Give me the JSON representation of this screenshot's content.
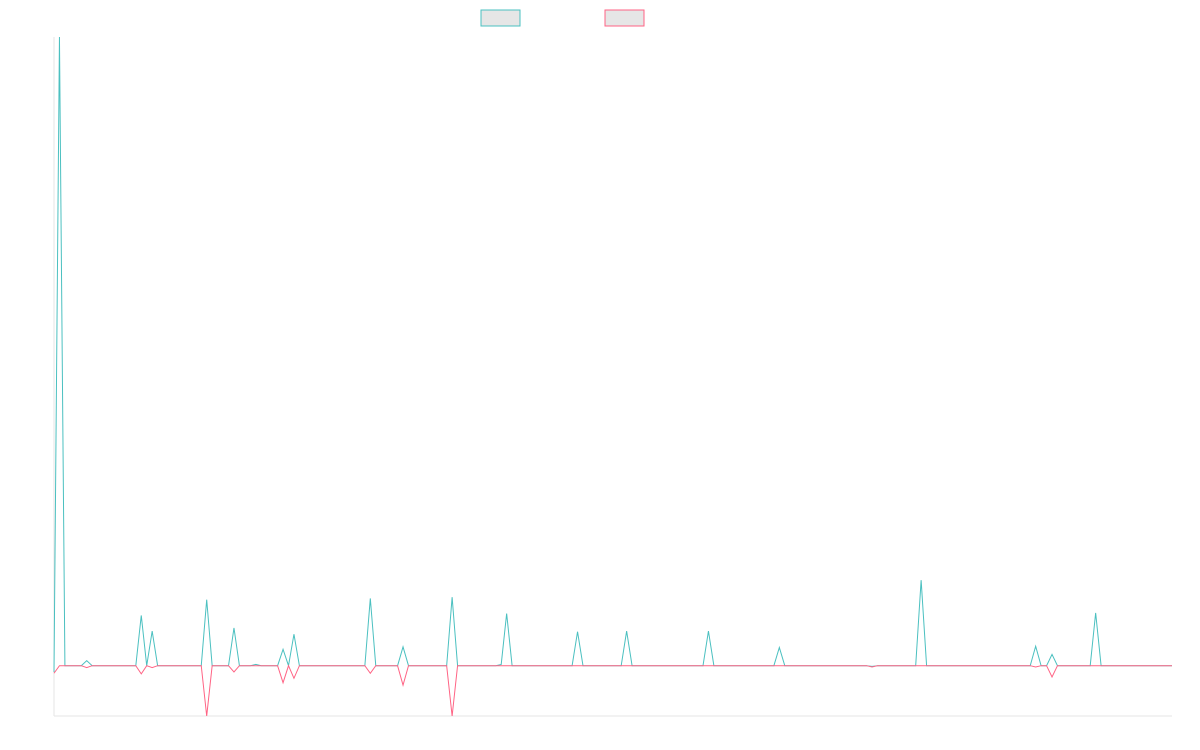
{
  "chart_data": {
    "type": "line",
    "title": "",
    "xlabel": "",
    "ylabel": "",
    "grid": false,
    "legend_placement": "top-center",
    "colors": {
      "legend_fill": "#e6e6e6",
      "axis": "#e6e6e6"
    },
    "x_count": 206,
    "ylim": [
      -8,
      100
    ],
    "series": [
      {
        "color": "#4bc0c0",
        "points": [
          [
            0,
            -1
          ],
          [
            1,
            100
          ],
          [
            2,
            0
          ],
          [
            5,
            0
          ],
          [
            6,
            0.8
          ],
          [
            7,
            0
          ],
          [
            15,
            0
          ],
          [
            16,
            8
          ],
          [
            17,
            0
          ],
          [
            18,
            5.5
          ],
          [
            19,
            0
          ],
          [
            27,
            0
          ],
          [
            28,
            10.5
          ],
          [
            29,
            0
          ],
          [
            32,
            0
          ],
          [
            33,
            6
          ],
          [
            34,
            0
          ],
          [
            36,
            0
          ],
          [
            37,
            0.2
          ],
          [
            38,
            0
          ],
          [
            41,
            0
          ],
          [
            42,
            2.6
          ],
          [
            43,
            0
          ],
          [
            44,
            5
          ],
          [
            45,
            0
          ],
          [
            57,
            0
          ],
          [
            58,
            10.7
          ],
          [
            59,
            0
          ],
          [
            63,
            0
          ],
          [
            64,
            3
          ],
          [
            65,
            0
          ],
          [
            72,
            0
          ],
          [
            73,
            10.9
          ],
          [
            74,
            0
          ],
          [
            81,
            0
          ],
          [
            82,
            0.2
          ],
          [
            83,
            8.3
          ],
          [
            84,
            0
          ],
          [
            95,
            0
          ],
          [
            96,
            5.4
          ],
          [
            97,
            0
          ],
          [
            104,
            0
          ],
          [
            105,
            5.5
          ],
          [
            106,
            0
          ],
          [
            119,
            0
          ],
          [
            120,
            5.5
          ],
          [
            121,
            0
          ],
          [
            132,
            0
          ],
          [
            133,
            2.9
          ],
          [
            134,
            0
          ],
          [
            149,
            0
          ],
          [
            150,
            -0.1
          ],
          [
            151,
            0
          ],
          [
            158,
            0
          ],
          [
            159,
            13.6
          ],
          [
            160,
            0
          ],
          [
            179,
            0
          ],
          [
            180,
            3.1
          ],
          [
            181,
            0
          ],
          [
            182,
            0
          ],
          [
            183,
            1.8
          ],
          [
            184,
            0
          ],
          [
            190,
            0
          ],
          [
            191,
            8.4
          ],
          [
            192,
            0
          ],
          [
            205,
            0
          ]
        ]
      },
      {
        "color": "#ff6384",
        "points": [
          [
            0,
            -1.2
          ],
          [
            1,
            0
          ],
          [
            5,
            0
          ],
          [
            6,
            -0.3
          ],
          [
            7,
            0
          ],
          [
            15,
            0
          ],
          [
            16,
            -1.3
          ],
          [
            17,
            0
          ],
          [
            18,
            -0.3
          ],
          [
            19,
            0
          ],
          [
            27,
            0
          ],
          [
            28,
            -8
          ],
          [
            29,
            0
          ],
          [
            32,
            0
          ],
          [
            33,
            -1
          ],
          [
            34,
            0
          ],
          [
            41,
            0
          ],
          [
            42,
            -2.7
          ],
          [
            43,
            0
          ],
          [
            44,
            -2
          ],
          [
            45,
            0
          ],
          [
            57,
            0
          ],
          [
            58,
            -1.2
          ],
          [
            59,
            0
          ],
          [
            63,
            0
          ],
          [
            64,
            -3.1
          ],
          [
            65,
            0
          ],
          [
            72,
            0
          ],
          [
            73,
            -8
          ],
          [
            74,
            0
          ],
          [
            149,
            0
          ],
          [
            150,
            -0.2
          ],
          [
            151,
            0
          ],
          [
            179,
            0
          ],
          [
            180,
            -0.2
          ],
          [
            181,
            0
          ],
          [
            182,
            0
          ],
          [
            183,
            -1.8
          ],
          [
            184,
            0
          ],
          [
            205,
            0
          ]
        ]
      }
    ]
  }
}
